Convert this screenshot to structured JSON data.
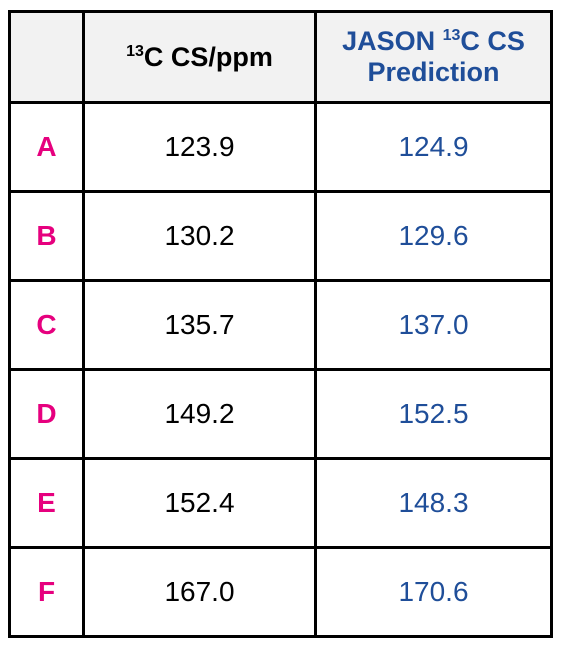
{
  "header": [
    {
      "sup": "13",
      "text": "C CS/ppm"
    },
    {
      "lead": "JASON",
      "sup": "13",
      "text": "C CS",
      "line2": "Prediction"
    }
  ],
  "rows": [
    [
      "A",
      "123.9",
      "124.9"
    ],
    [
      "B",
      "130.2",
      "129.6"
    ],
    [
      "C",
      "135.7",
      "137.0"
    ],
    [
      "D",
      "149.2",
      "152.5"
    ],
    [
      "E",
      "152.4",
      "148.3"
    ],
    [
      "F",
      "167.0",
      "170.6"
    ]
  ]
}
